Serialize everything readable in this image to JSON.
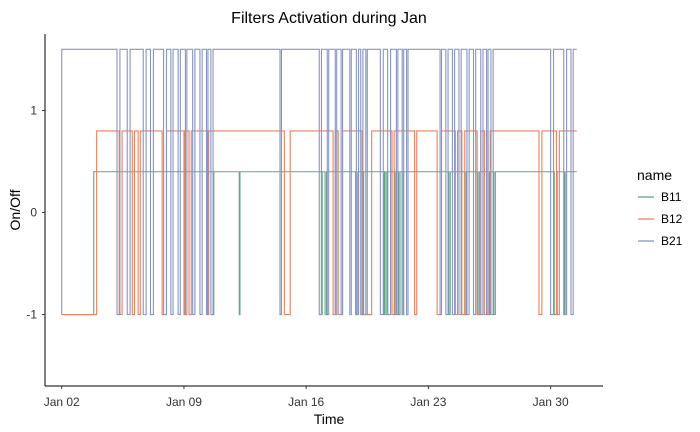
{
  "chart_data": {
    "type": "line",
    "title": "Filters Activation during Jan",
    "xlabel": "Time",
    "ylabel": "On/Off",
    "xlim": [
      "2023-01-01T01:00",
      "2023-02-02T00:00"
    ],
    "ylim": [
      -1.7,
      1.75
    ],
    "xticks": [
      {
        "date": "2023-01-02",
        "label": "Jan 02"
      },
      {
        "date": "2023-01-09",
        "label": "Jan 09"
      },
      {
        "date": "2023-01-16",
        "label": "Jan 16"
      },
      {
        "date": "2023-01-23",
        "label": "Jan 23"
      },
      {
        "date": "2023-01-30",
        "label": "Jan 30"
      }
    ],
    "yticks": [
      {
        "value": 1,
        "label": "1"
      },
      {
        "value": 0,
        "label": "0"
      },
      {
        "value": -1,
        "label": "-1"
      }
    ],
    "grid": false,
    "legend": {
      "title": "name",
      "position": "right"
    },
    "start": "2023-01-02T00:00",
    "end": "2023-01-31T12:00",
    "series": [
      {
        "name": "B11",
        "color": "#66a38a",
        "low": -1,
        "high": 0.4,
        "on_intervals": [
          [
            "2023-01-03T20:00",
            "2023-01-10T16:00"
          ],
          [
            "2023-01-10T17:00",
            "2023-01-12T04:00"
          ],
          [
            "2023-01-12T05:00",
            "2023-01-16T21:00"
          ],
          [
            "2023-01-16T22:00",
            "2023-01-17T02:00"
          ],
          [
            "2023-01-17T04:00",
            "2023-01-18T20:00"
          ],
          [
            "2023-01-18T23:00",
            "2023-01-19T05:00"
          ],
          [
            "2023-01-19T07:00",
            "2023-01-20T11:00"
          ],
          [
            "2023-01-20T12:00",
            "2023-01-20T14:00"
          ],
          [
            "2023-01-20T16:00",
            "2023-01-21T02:00"
          ],
          [
            "2023-01-21T04:00",
            "2023-01-21T07:00"
          ],
          [
            "2023-01-21T09:00",
            "2023-01-21T12:00"
          ],
          [
            "2023-01-21T14:00",
            "2023-01-24T04:00"
          ],
          [
            "2023-01-24T06:00",
            "2023-01-25T02:00"
          ],
          [
            "2023-01-25T04:00",
            "2023-01-25T20:00"
          ],
          [
            "2023-01-25T22:00",
            "2023-01-26T10:00"
          ],
          [
            "2023-01-26T12:00",
            "2023-01-26T18:00"
          ],
          [
            "2023-01-26T20:00",
            "2023-01-30T05:00"
          ],
          [
            "2023-01-30T09:00",
            "2023-01-30T19:00"
          ],
          [
            "2023-01-30T21:00",
            "2023-01-31T12:00"
          ]
        ]
      },
      {
        "name": "B12",
        "color": "#e8825d",
        "low": -1,
        "high": 0.8,
        "on_intervals": [
          [
            "2023-01-04T00:00",
            "2023-01-05T07:00"
          ],
          [
            "2023-01-05T11:00",
            "2023-01-06T01:00"
          ],
          [
            "2023-01-06T04:00",
            "2023-01-06T09:00"
          ],
          [
            "2023-01-06T12:00",
            "2023-01-07T18:00"
          ],
          [
            "2023-01-08T00:00",
            "2023-01-09T00:00"
          ],
          [
            "2023-01-09T01:00",
            "2023-01-09T07:00"
          ],
          [
            "2023-01-09T10:00",
            "2023-01-10T08:00"
          ],
          [
            "2023-01-10T10:00",
            "2023-01-14T18:00"
          ],
          [
            "2023-01-15T02:00",
            "2023-01-17T13:00"
          ],
          [
            "2023-01-17T16:00",
            "2023-01-17T20:00"
          ],
          [
            "2023-01-18T02:00",
            "2023-01-19T05:00"
          ],
          [
            "2023-01-19T18:00",
            "2023-01-20T22:00"
          ],
          [
            "2023-01-21T01:00",
            "2023-01-22T05:00"
          ],
          [
            "2023-01-22T08:00",
            "2023-01-23T12:00"
          ],
          [
            "2023-01-23T18:00",
            "2023-01-24T13:00"
          ],
          [
            "2023-01-24T16:00",
            "2023-01-24T22:00"
          ],
          [
            "2023-01-25T02:00",
            "2023-01-25T19:00"
          ],
          [
            "2023-01-26T00:00",
            "2023-01-26T05:00"
          ],
          [
            "2023-01-26T08:00",
            "2023-01-26T10:00"
          ],
          [
            "2023-01-26T13:00",
            "2023-01-29T08:00"
          ],
          [
            "2023-01-29T12:00",
            "2023-01-30T08:00"
          ],
          [
            "2023-01-30T12:00",
            "2023-01-31T12:00"
          ]
        ]
      },
      {
        "name": "B21",
        "color": "#8895c2",
        "low": -1,
        "high": 1.6,
        "on_intervals": [
          [
            "2023-01-02T00:00",
            "2023-01-05T04:00"
          ],
          [
            "2023-01-05T08:00",
            "2023-01-05T18:00"
          ],
          [
            "2023-01-05T22:00",
            "2023-01-06T16:00"
          ],
          [
            "2023-01-06T20:00",
            "2023-01-07T02:00"
          ],
          [
            "2023-01-07T06:00",
            "2023-01-07T20:00"
          ],
          [
            "2023-01-08T00:00",
            "2023-01-08T06:00"
          ],
          [
            "2023-01-08T09:00",
            "2023-01-08T16:00"
          ],
          [
            "2023-01-08T19:00",
            "2023-01-09T02:00"
          ],
          [
            "2023-01-09T04:00",
            "2023-01-09T12:00"
          ],
          [
            "2023-01-09T15:00",
            "2023-01-09T22:00"
          ],
          [
            "2023-01-10T01:00",
            "2023-01-10T07:00"
          ],
          [
            "2023-01-10T09:00",
            "2023-01-10T13:00"
          ],
          [
            "2023-01-10T16:00",
            "2023-01-14T12:00"
          ],
          [
            "2023-01-14T14:00",
            "2023-01-16T18:00"
          ],
          [
            "2023-01-16T21:00",
            "2023-01-17T05:00"
          ],
          [
            "2023-01-17T07:00",
            "2023-01-17T16:00"
          ],
          [
            "2023-01-17T18:00",
            "2023-01-18T00:00"
          ],
          [
            "2023-01-18T02:00",
            "2023-01-18T12:00"
          ],
          [
            "2023-01-18T14:00",
            "2023-01-18T21:00"
          ],
          [
            "2023-01-19T00:00",
            "2023-01-19T03:00"
          ],
          [
            "2023-01-19T06:00",
            "2023-01-19T10:00"
          ],
          [
            "2023-01-19T12:00",
            "2023-01-20T06:00"
          ],
          [
            "2023-01-20T10:00",
            "2023-01-20T16:00"
          ],
          [
            "2023-01-20T20:00",
            "2023-01-21T04:00"
          ],
          [
            "2023-01-21T06:00",
            "2023-01-21T12:00"
          ],
          [
            "2023-01-21T14:00",
            "2023-01-21T18:00"
          ],
          [
            "2023-01-21T20:00",
            "2023-01-23T16:00"
          ],
          [
            "2023-01-23T18:00",
            "2023-01-24T00:00"
          ],
          [
            "2023-01-24T03:00",
            "2023-01-24T09:00"
          ],
          [
            "2023-01-24T12:00",
            "2023-01-24T18:00"
          ],
          [
            "2023-01-24T21:00",
            "2023-01-25T05:00"
          ],
          [
            "2023-01-25T08:00",
            "2023-01-25T14:00"
          ],
          [
            "2023-01-25T17:00",
            "2023-01-26T00:00"
          ],
          [
            "2023-01-26T03:00",
            "2023-01-26T08:00"
          ],
          [
            "2023-01-26T10:00",
            "2023-01-26T14:00"
          ],
          [
            "2023-01-26T17:00",
            "2023-01-30T00:00"
          ],
          [
            "2023-01-30T04:00",
            "2023-01-30T18:00"
          ],
          [
            "2023-01-30T22:00",
            "2023-01-31T04:00"
          ],
          [
            "2023-01-31T07:00",
            "2023-01-31T12:00"
          ]
        ]
      }
    ]
  }
}
